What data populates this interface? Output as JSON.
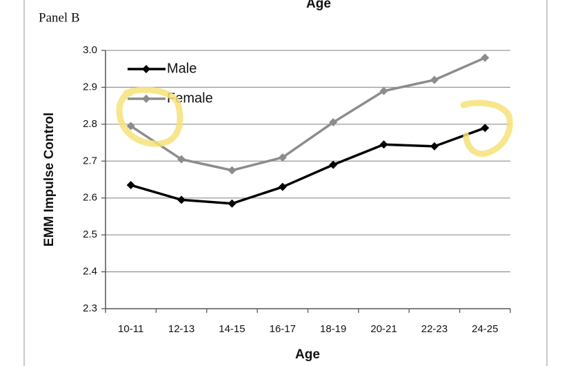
{
  "top_label": "Age",
  "chart_data": {
    "type": "line",
    "panel_label": "Panel B",
    "x_label": "Age",
    "y_label": "EMM Impulse Control",
    "categories": [
      "10-11",
      "12-13",
      "14-15",
      "16-17",
      "18-19",
      "20-21",
      "22-23",
      "24-25"
    ],
    "series": [
      {
        "name": "Male",
        "color": "#000000",
        "values": [
          2.635,
          2.595,
          2.585,
          2.63,
          2.69,
          2.745,
          2.74,
          2.79
        ]
      },
      {
        "name": "Female",
        "color": "#8c8c8c",
        "values": [
          2.795,
          2.705,
          2.675,
          2.71,
          2.805,
          2.89,
          2.92,
          2.98
        ]
      }
    ],
    "ylim": [
      2.3,
      3.0
    ],
    "yticks": [
      2.3,
      2.4,
      2.5,
      2.6,
      2.7,
      2.8,
      2.9,
      {
        "value": 3.0,
        "label": "3.0"
      }
    ],
    "grid": true,
    "legend": "upper left"
  }
}
